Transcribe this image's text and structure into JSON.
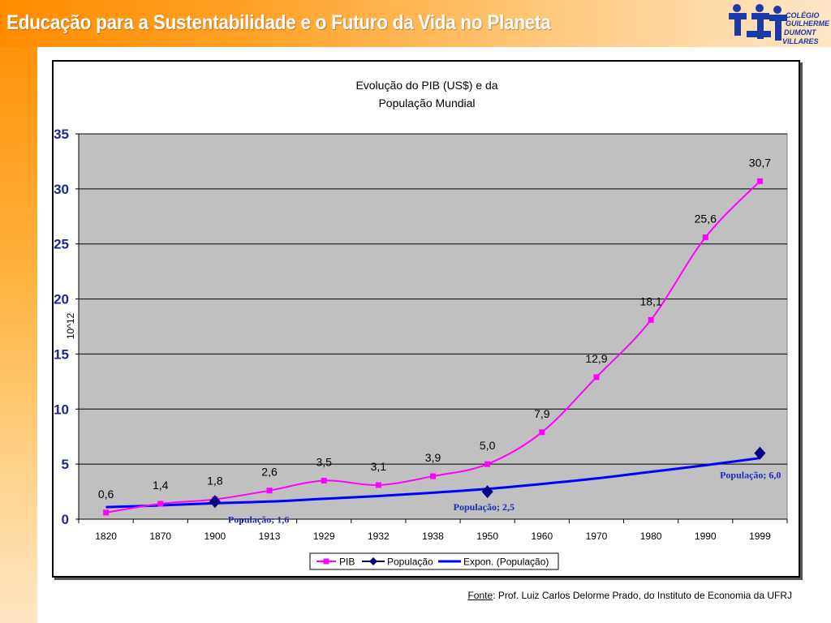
{
  "slide": {
    "title": "Educação para a Sustentabilidade e o Futuro da Vida no Planeta"
  },
  "logo": {
    "line1": "COLÉGIO",
    "line2": "GUILHERME",
    "line3": "DUMONT",
    "line4": "VILLARES"
  },
  "source": {
    "label": "Fonte",
    "text": ": Prof. Luiz Carlos Delorme Prado, do Instituto de Economia da UFRJ"
  },
  "colors": {
    "pib": "#ff00ff",
    "populacao": "#000080",
    "trend": "#0000ff",
    "plot_bg": "#c0c0c0",
    "title_band": "#ff8c00"
  },
  "chart_data": {
    "type": "line",
    "title": [
      "Evolução do PIB (US$) e da",
      "População Mundial"
    ],
    "ylabel": "10^12",
    "xlabel": "",
    "categories": [
      "1820",
      "1870",
      "1900",
      "1913",
      "1929",
      "1932",
      "1938",
      "1950",
      "1960",
      "1970",
      "1980",
      "1990",
      "1999"
    ],
    "ylim": [
      0,
      35
    ],
    "yticks": [
      0,
      5,
      10,
      15,
      20,
      25,
      30,
      35
    ],
    "grid": true,
    "series": [
      {
        "name": "PIB",
        "marker": "square",
        "color": "#ff00ff",
        "values": [
          0.6,
          1.4,
          1.8,
          2.6,
          3.5,
          3.1,
          3.9,
          5.0,
          7.9,
          12.9,
          18.1,
          25.6,
          30.7
        ],
        "data_labels": [
          "0,6",
          "1,4",
          "1,8",
          "2,6",
          "3,5",
          "3,1",
          "3,9",
          "5,0",
          "7,9",
          "12,9",
          "18,1",
          "25,6",
          "30,7"
        ]
      },
      {
        "name": "População",
        "marker": "diamond",
        "color": "#000080",
        "points": [
          {
            "category": "1900",
            "value": 1.6,
            "label": "População; 1,6"
          },
          {
            "category": "1950",
            "value": 2.5,
            "label": "População; 2,5"
          },
          {
            "category": "1999",
            "value": 6.0,
            "label": "População; 6,0"
          }
        ]
      },
      {
        "name": "Expon. (População)",
        "marker": "none",
        "color": "#0000ff",
        "values": [
          1.1,
          1.25,
          1.45,
          1.6,
          1.85,
          2.1,
          2.4,
          2.75,
          3.2,
          3.7,
          4.3,
          4.9,
          5.55
        ]
      }
    ],
    "legend": {
      "position": "bottom",
      "entries": [
        "PIB",
        "População",
        "Expon. (População)"
      ]
    }
  }
}
